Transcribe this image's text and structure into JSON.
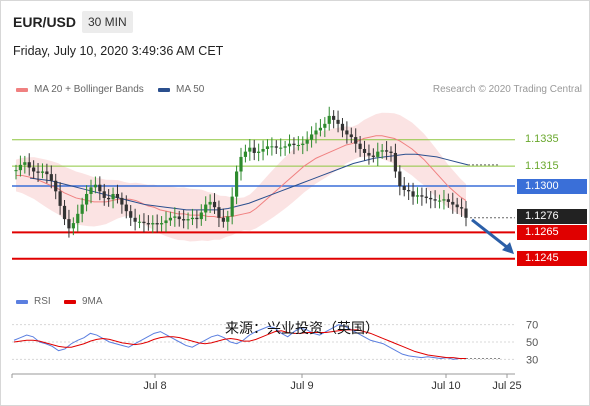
{
  "header": {
    "symbol": "EUR/USD",
    "timeframe": "30 MIN",
    "timestamp": "Friday, July 10, 2020 3:49:36 AM CET"
  },
  "legend": {
    "ma20_label": "MA 20 + Bollinger Bands",
    "ma50_label": "MA 50",
    "rsi_label": "RSI",
    "ma9_label": "9MA"
  },
  "credit": "Research © 2020 Trading Central",
  "overlay_text": "来源：兴业投资（英国）",
  "colors": {
    "ma20": "#f08080",
    "ma50": "#2b4f8e",
    "resistance": "#8dc63f",
    "pivot": "#3a6fd8",
    "support": "#e00000",
    "current": "#222222",
    "candle_up": "#2e8b2e",
    "candle_down": "#333333",
    "bollinger_fill": "#fadada",
    "forecast_arrow": "#2b5fa8",
    "rsi_line": "#5b7fe0",
    "rsi_ma": "#e00000"
  },
  "chart_data": {
    "type": "candlestick",
    "title": "EUR/USD 30 MIN",
    "y_range": [
      1.1232,
      1.1362
    ],
    "x_labels": [
      "Jul 8",
      "Jul 9",
      "Jul 10",
      "Jul 25"
    ],
    "levels": [
      {
        "name": "resistance_2",
        "value": 1.1335,
        "label": "1.1335",
        "kind": "resistance"
      },
      {
        "name": "resistance_1",
        "value": 1.1315,
        "label": "1.1315",
        "kind": "resistance"
      },
      {
        "name": "pivot",
        "value": 1.13,
        "label": "1.1300",
        "kind": "pivot"
      },
      {
        "name": "last",
        "value": 1.1276,
        "label": "1.1276",
        "kind": "current"
      },
      {
        "name": "support_1",
        "value": 1.1265,
        "label": "1.1265",
        "kind": "support"
      },
      {
        "name": "support_2",
        "value": 1.1245,
        "label": "1.1245",
        "kind": "support"
      }
    ],
    "close": [
      1.1312,
      1.1316,
      1.1318,
      1.1314,
      1.1311,
      1.131,
      1.1311,
      1.1309,
      1.1304,
      1.1296,
      1.1285,
      1.1275,
      1.1268,
      1.1272,
      1.1279,
      1.1286,
      1.1294,
      1.1299,
      1.1301,
      1.1296,
      1.1291,
      1.129,
      1.1294,
      1.1291,
      1.1286,
      1.1281,
      1.1276,
      1.1273,
      1.1273,
      1.1272,
      1.1271,
      1.1272,
      1.1271,
      1.1272,
      1.1274,
      1.1276,
      1.1277,
      1.1275,
      1.1274,
      1.1275,
      1.1276,
      1.1275,
      1.128,
      1.1286,
      1.1288,
      1.1284,
      1.1276,
      1.1273,
      1.1277,
      1.1292,
      1.1311,
      1.1322,
      1.1326,
      1.1329,
      1.1325,
      1.1326,
      1.1328,
      1.133,
      1.133,
      1.1329,
      1.1329,
      1.133,
      1.1332,
      1.1331,
      1.1331,
      1.1332,
      1.1335,
      1.1339,
      1.1342,
      1.1344,
      1.1347,
      1.1353,
      1.135,
      1.1347,
      1.1342,
      1.1339,
      1.1337,
      1.1332,
      1.1328,
      1.1325,
      1.1323,
      1.1322,
      1.1326,
      1.1327,
      1.1326,
      1.1325,
      1.1311,
      1.13,
      1.1297,
      1.1296,
      1.1292,
      1.1293,
      1.1292,
      1.1291,
      1.129,
      1.1289,
      1.1289,
      1.129,
      1.1288,
      1.1286,
      1.1284,
      1.1283,
      1.1276
    ],
    "ma20": [
      1.1308,
      1.1308,
      1.1307,
      1.1306,
      1.1304,
      1.1302,
      1.13,
      1.1298,
      1.1295,
      1.1293,
      1.1291,
      1.129,
      1.1289,
      1.1288,
      1.1288,
      1.1288,
      1.1289,
      1.129,
      1.129,
      1.129,
      1.1289,
      1.1287,
      1.1285,
      1.1284,
      1.1282,
      1.1281,
      1.128,
      1.1279,
      1.1279,
      1.1278,
      1.1278,
      1.1278,
      1.1277,
      1.1277,
      1.1276,
      1.1277,
      1.1277,
      1.1278,
      1.1279,
      1.128,
      1.1283,
      1.1287,
      1.1291,
      1.1295,
      1.1299,
      1.1303,
      1.1307,
      1.1311,
      1.1315,
      1.1318,
      1.1321,
      1.1323,
      1.1325,
      1.1327,
      1.1329,
      1.1331,
      1.1332,
      1.1334,
      1.1336,
      1.1337,
      1.1338,
      1.1338,
      1.1337,
      1.1336,
      1.1334,
      1.1331,
      1.1328,
      1.1324,
      1.132,
      1.1315,
      1.131,
      1.1305,
      1.13,
      1.1296,
      1.1292,
      1.1289
    ],
    "ma50": [
      1.1306,
      1.1305,
      1.1304,
      1.1302,
      1.13,
      1.1298,
      1.1296,
      1.1294,
      1.1292,
      1.129,
      1.1288,
      1.1286,
      1.1285,
      1.1284,
      1.1283,
      1.1282,
      1.1282,
      1.1282,
      1.1282,
      1.1283,
      1.1285,
      1.1287,
      1.129,
      1.1293,
      1.1296,
      1.1299,
      1.1302,
      1.1305,
      1.1308,
      1.1311,
      1.1314,
      1.1317,
      1.1319,
      1.1321,
      1.1322,
      1.1323,
      1.1324,
      1.1324,
      1.1323,
      1.1322,
      1.132,
      1.1318,
      1.1316
    ],
    "rsi_range": [
      20,
      80
    ],
    "rsi_ticks": [
      70,
      50,
      30
    ],
    "rsi": [
      52,
      55,
      58,
      56,
      50,
      48,
      45,
      40,
      42,
      48,
      52,
      55,
      60,
      58,
      54,
      50,
      48,
      46,
      44,
      48,
      52,
      56,
      60,
      62,
      58,
      54,
      50,
      46,
      44,
      48,
      52,
      56,
      58,
      55,
      50,
      48,
      52,
      58,
      62,
      65,
      68,
      66,
      60,
      56,
      62,
      66,
      64,
      60,
      58,
      62,
      66,
      70,
      68,
      64,
      60,
      56,
      52,
      50,
      48,
      44,
      40,
      36,
      34,
      33,
      32,
      33,
      32,
      31,
      32,
      30,
      31,
      31
    ],
    "rsi_ma": [
      50,
      51,
      52,
      52,
      51,
      49,
      47,
      45,
      44,
      44,
      46,
      48,
      51,
      53,
      54,
      53,
      51,
      49,
      48,
      47,
      48,
      50,
      53,
      55,
      56,
      56,
      55,
      53,
      51,
      49,
      48,
      49,
      51,
      53,
      54,
      53,
      51,
      51,
      53,
      56,
      59,
      62,
      63,
      61,
      60,
      60,
      61,
      61,
      61,
      61,
      62,
      63,
      64,
      64,
      64,
      62,
      60,
      57,
      54,
      51,
      48,
      45,
      42,
      39,
      37,
      35,
      34,
      33,
      32,
      32,
      31,
      31
    ]
  }
}
